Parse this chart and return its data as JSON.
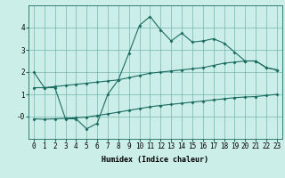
{
  "xlabel": "Humidex (Indice chaleur)",
  "background_color": "#cceee8",
  "grid_color": "#5fa89e",
  "line_color": "#1a6b60",
  "top_x": [
    0,
    1,
    2,
    3,
    4,
    5,
    6,
    7,
    8,
    9,
    10,
    11,
    12,
    13,
    14,
    15,
    16,
    17,
    18,
    19,
    20,
    21,
    22,
    23
  ],
  "top_y": [
    2.0,
    1.3,
    1.3,
    -0.1,
    -0.1,
    -0.55,
    -0.3,
    1.0,
    1.65,
    2.85,
    4.1,
    4.5,
    3.9,
    3.4,
    3.75,
    3.35,
    3.4,
    3.5,
    3.3,
    2.9,
    2.5,
    2.5,
    2.2,
    2.1
  ],
  "mid_x": [
    0,
    1,
    2,
    3,
    4,
    5,
    6,
    7,
    8,
    9,
    10,
    11,
    12,
    13,
    14,
    15,
    16,
    17,
    18,
    19,
    20,
    21,
    22,
    23
  ],
  "mid_y": [
    1.3,
    1.3,
    1.35,
    1.4,
    1.45,
    1.5,
    1.55,
    1.6,
    1.65,
    1.75,
    1.85,
    1.95,
    2.0,
    2.05,
    2.1,
    2.15,
    2.2,
    2.3,
    2.4,
    2.45,
    2.5,
    2.5,
    2.2,
    2.1
  ],
  "bot_x": [
    0,
    1,
    2,
    3,
    4,
    5,
    6,
    7,
    8,
    9,
    10,
    11,
    12,
    13,
    14,
    15,
    16,
    17,
    18,
    19,
    20,
    21,
    22,
    23
  ],
  "bot_y": [
    -0.1,
    -0.12,
    -0.1,
    -0.08,
    -0.05,
    -0.02,
    0.05,
    0.12,
    0.2,
    0.28,
    0.36,
    0.44,
    0.5,
    0.55,
    0.6,
    0.65,
    0.7,
    0.75,
    0.8,
    0.85,
    0.88,
    0.9,
    0.95,
    1.0
  ],
  "xlim": [
    -0.5,
    23.5
  ],
  "ylim": [
    -1.0,
    5.0
  ],
  "yticks": [
    0,
    1,
    2,
    3,
    4
  ],
  "ytick_labels": [
    "-0",
    "1",
    "2",
    "3",
    "4"
  ],
  "tick_fontsize": 5.5,
  "xlabel_fontsize": 6.0
}
